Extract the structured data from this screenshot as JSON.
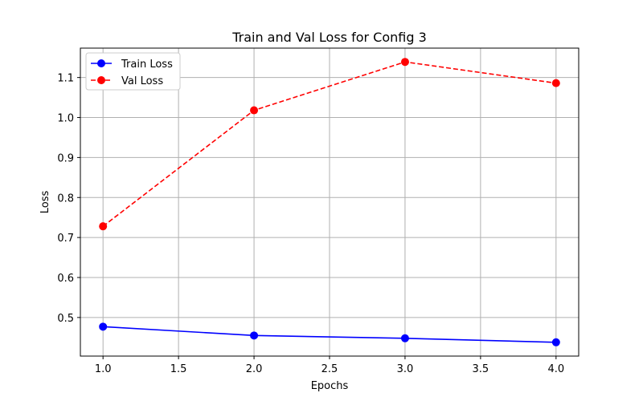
{
  "chart_data": {
    "type": "line",
    "title": "Train and Val Loss for Config 3",
    "xlabel": "Epochs",
    "ylabel": "Loss",
    "x": [
      1.0,
      2.0,
      3.0,
      4.0
    ],
    "xlim": [
      0.85,
      4.15
    ],
    "ylim": [
      0.4035,
      1.1735
    ],
    "xticks": [
      1.0,
      1.5,
      2.0,
      2.5,
      3.0,
      3.5,
      4.0
    ],
    "xtick_labels": [
      "1.0",
      "1.5",
      "2.0",
      "2.5",
      "3.0",
      "3.5",
      "4.0"
    ],
    "yticks": [
      0.5,
      0.6,
      0.7,
      0.8,
      0.9,
      1.0,
      1.1
    ],
    "ytick_labels": [
      "0.5",
      "0.6",
      "0.7",
      "0.8",
      "0.9",
      "1.0",
      "1.1"
    ],
    "grid": true,
    "legend_position": "upper left",
    "series": [
      {
        "name": "Train Loss",
        "values": [
          0.477,
          0.455,
          0.448,
          0.438
        ],
        "color": "#0000ff",
        "linestyle": "solid",
        "marker": "circle"
      },
      {
        "name": "Val Loss",
        "values": [
          0.728,
          1.018,
          1.139,
          1.086
        ],
        "color": "#ff0000",
        "linestyle": "dashed",
        "marker": "circle"
      }
    ]
  }
}
